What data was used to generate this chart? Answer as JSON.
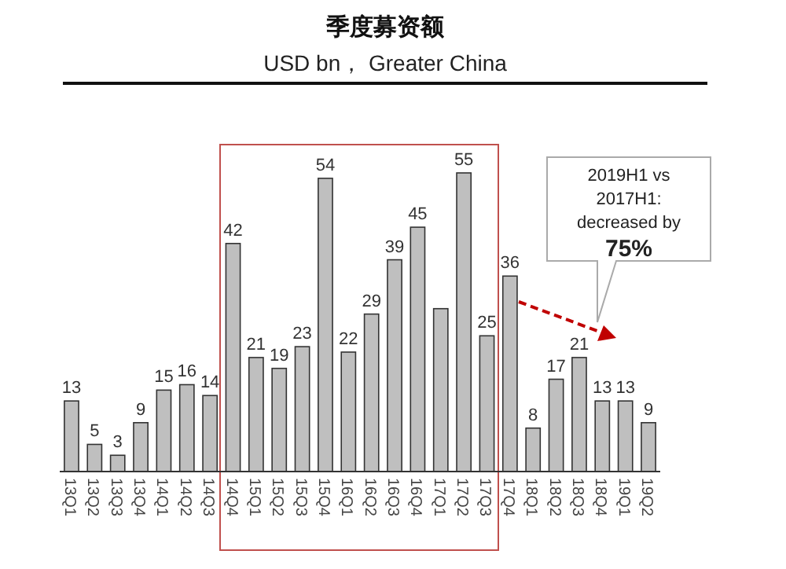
{
  "chart_data": {
    "type": "bar",
    "title": "季度募资额",
    "subtitle": "USD bn， Greater China",
    "categories": [
      "13Q1",
      "13Q2",
      "13Q3",
      "13Q4",
      "14Q1",
      "14Q2",
      "14Q3",
      "14Q4",
      "15Q1",
      "15Q2",
      "15Q3",
      "15Q4",
      "16Q1",
      "16Q2",
      "16Q3",
      "16Q4",
      "17Q1",
      "17Q2",
      "17Q3",
      "17Q4",
      "18Q1",
      "18Q2",
      "18Q3",
      "18Q4",
      "19Q1",
      "19Q2"
    ],
    "values": [
      13,
      5,
      3,
      9,
      15,
      16,
      14,
      42,
      21,
      19,
      23,
      54,
      22,
      29,
      39,
      45,
      30,
      55,
      25,
      36,
      8,
      17,
      21,
      13,
      13,
      9
    ],
    "value_labels": [
      "13",
      "5",
      "3",
      "9",
      "15",
      "16",
      "14",
      "42",
      "21",
      "19",
      "23",
      "54",
      "22",
      "29",
      "39",
      "45",
      null,
      "55",
      "25",
      "36",
      "8",
      "17",
      "21",
      "13",
      "13",
      "9"
    ],
    "color": "#bfbfbf",
    "annotations": [
      "2019H1 vs\n2017H1:\ndecreased by\n75%"
    ]
  }
}
